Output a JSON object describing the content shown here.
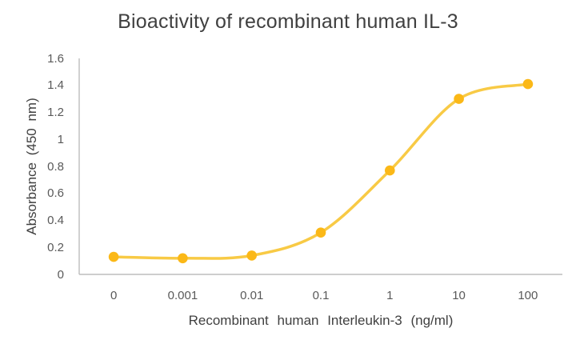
{
  "chart_data": {
    "type": "line",
    "title": "Bioactivity of recombinant human IL-3",
    "xlabel": "Recombinant human Interleukin-3 (ng/ml)",
    "ylabel": "Absorbance (450 nm)",
    "categories": [
      "0",
      "0.001",
      "0.01",
      "0.1",
      "1",
      "10",
      "100"
    ],
    "series": [
      {
        "name": "Absorbance (450 nm)",
        "values": [
          0.13,
          0.12,
          0.14,
          0.31,
          0.77,
          1.3,
          1.41
        ]
      }
    ],
    "ylim": [
      0,
      1.6
    ],
    "ytick_step": 0.2,
    "yticks": [
      "0",
      "0.2",
      "0.4",
      "0.6",
      "0.8",
      "1",
      "1.2",
      "1.4",
      "1.6"
    ],
    "grid": false,
    "legend": "none",
    "smooth_line": true,
    "marker_shape": "circle",
    "colors": {
      "line": "#F8CA45",
      "marker": "#FBB817",
      "axis_line": "#BDBDBD",
      "title_text": "#404040",
      "tick_text": "#595959",
      "background": "#FFFFFF"
    }
  }
}
